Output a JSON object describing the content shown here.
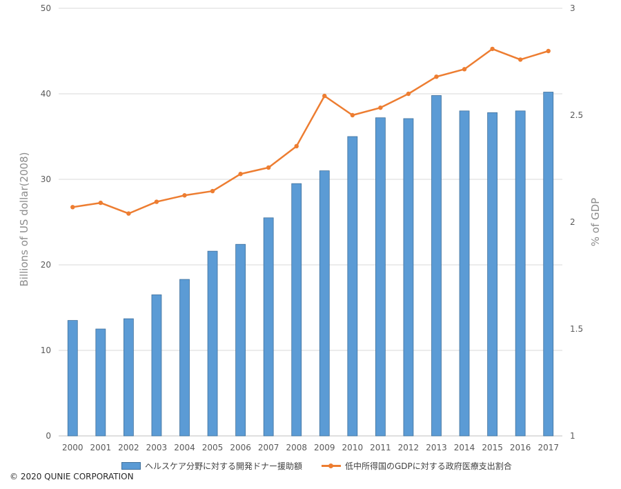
{
  "chart_data": {
    "type": "bar",
    "categories": [
      "2000",
      "2001",
      "2002",
      "2003",
      "2004",
      "2005",
      "2006",
      "2007",
      "2008",
      "2009",
      "2010",
      "2011",
      "2012",
      "2013",
      "2014",
      "2015",
      "2016",
      "2017"
    ],
    "series": [
      {
        "name": "ヘルスケア分野に対する開発ドナー援助額",
        "type": "bar",
        "axis": "left",
        "color": "#5b9bd5",
        "values": [
          13.5,
          12.5,
          13.7,
          16.5,
          18.3,
          21.6,
          22.4,
          25.5,
          29.5,
          31.0,
          35.0,
          37.2,
          37.1,
          39.8,
          38.0,
          37.8,
          38.0,
          40.2
        ]
      },
      {
        "name": "低中所得国のGDPに対する政府医療支出割合",
        "type": "line",
        "axis": "right",
        "color": "#ed7d31",
        "values": [
          2.07,
          2.09,
          2.04,
          2.095,
          2.125,
          2.145,
          2.225,
          2.255,
          2.355,
          2.59,
          2.5,
          2.535,
          2.6,
          2.68,
          2.715,
          2.81,
          2.76,
          2.8
        ]
      }
    ],
    "ylabel": "Billions of US dollar(2008)",
    "ylim": [
      0,
      50
    ],
    "yticks": [
      "0",
      "10",
      "20",
      "30",
      "40",
      "50"
    ],
    "y2label": "% of  GDP",
    "y2lim": [
      1,
      3
    ],
    "y2ticks": [
      "1",
      "1.5",
      "2",
      "2.5",
      "3"
    ],
    "grid": true,
    "legend_position": "bottom"
  },
  "footer": {
    "copyright": "© 2020 QUNIE CORPORATION"
  }
}
